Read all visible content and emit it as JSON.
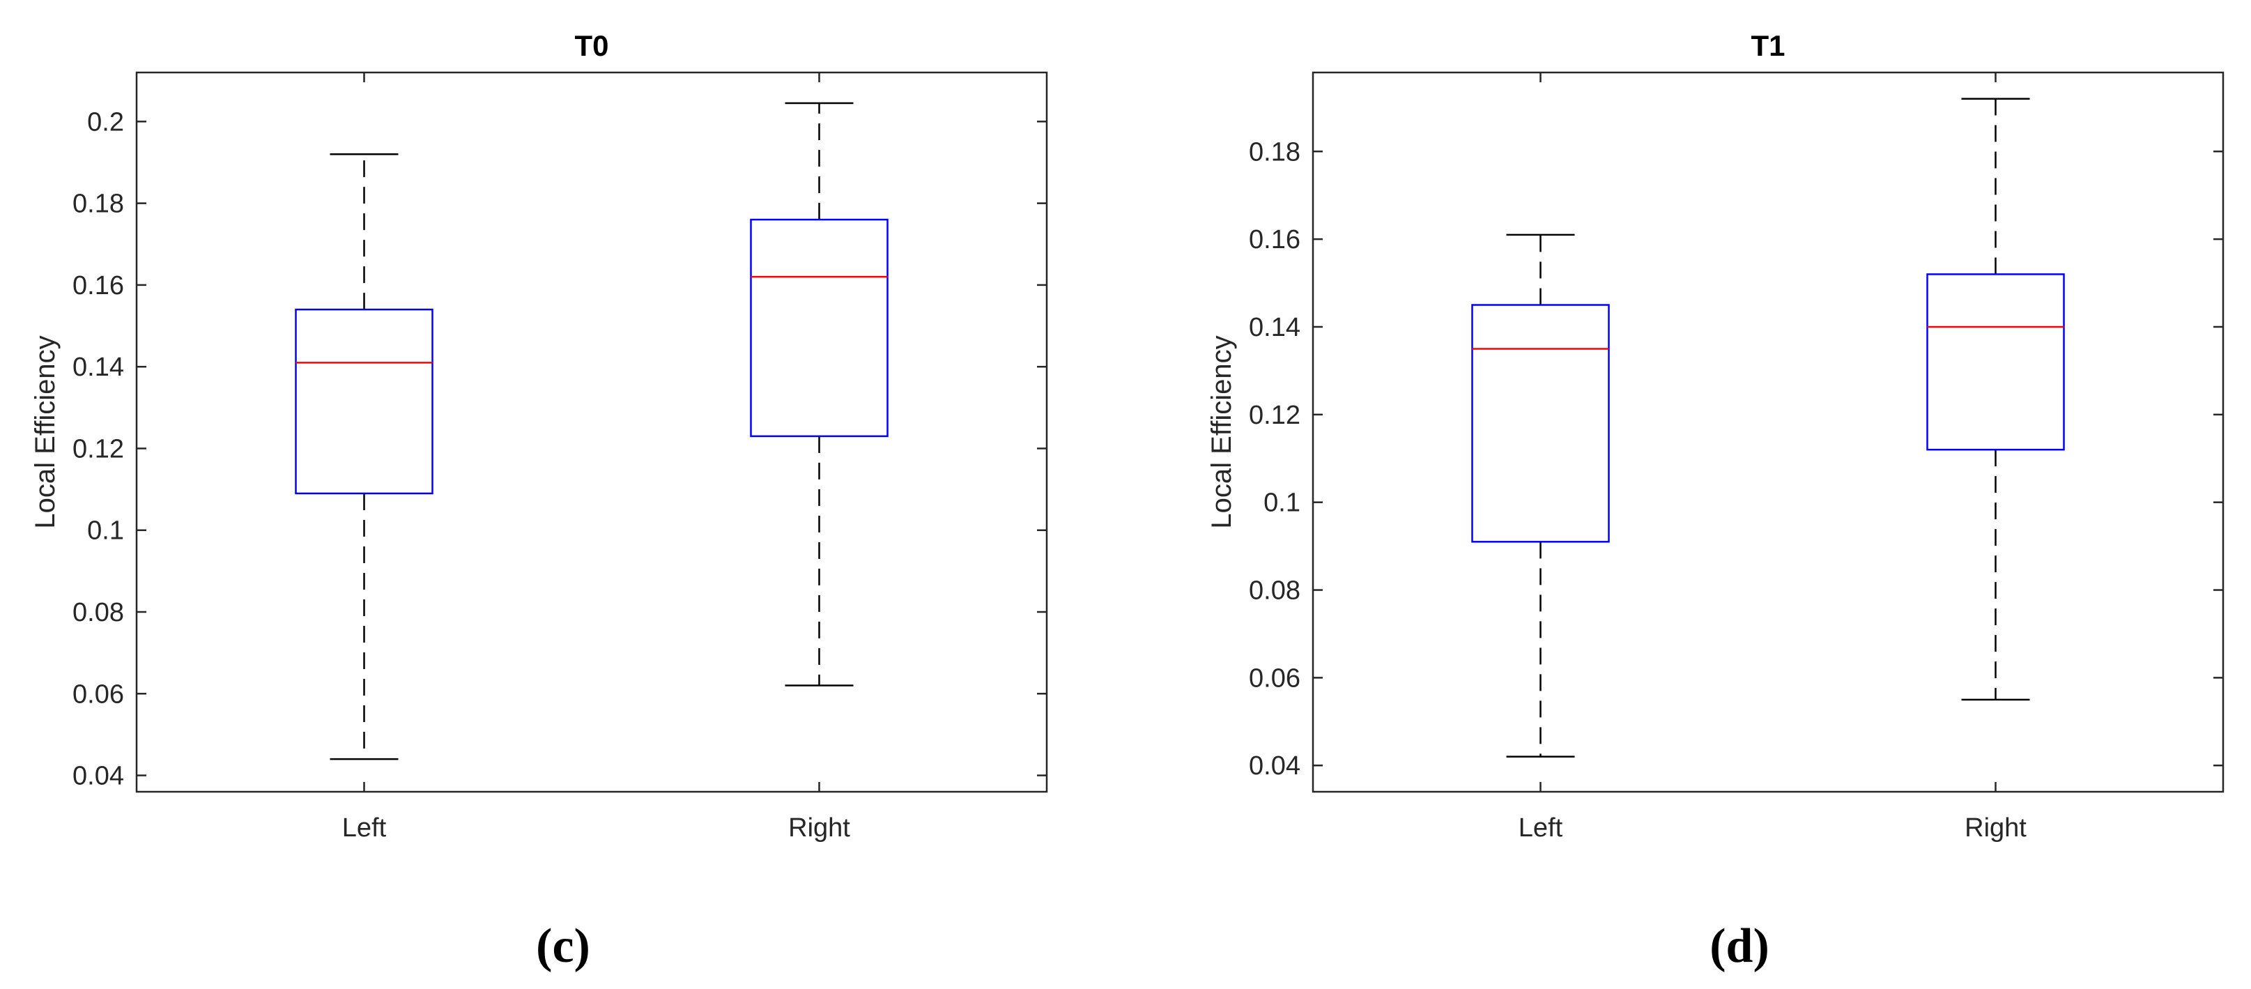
{
  "chart_data": [
    {
      "type": "box",
      "title": "T0",
      "panel_label": "(c)",
      "xlabel": "",
      "ylabel": "Local Efficiency",
      "categories": [
        "Left",
        "Right"
      ],
      "ylim": [
        0.036,
        0.212
      ],
      "yticks": [
        0.04,
        0.06,
        0.08,
        0.1,
        0.12,
        0.14,
        0.16,
        0.18,
        0.2
      ],
      "ytick_labels": [
        "0.04",
        "0.06",
        "0.08",
        "0.1",
        "0.12",
        "0.14",
        "0.16",
        "0.18",
        "0.2"
      ],
      "boxes": [
        {
          "category": "Left",
          "whisker_low": 0.044,
          "q1": 0.109,
          "median": 0.141,
          "q3": 0.154,
          "whisker_high": 0.192
        },
        {
          "category": "Right",
          "whisker_low": 0.062,
          "q1": 0.123,
          "median": 0.162,
          "q3": 0.176,
          "whisker_high": 0.2045
        }
      ],
      "colors": {
        "box": "#0000ff",
        "median": "#ff0000",
        "whisker": "#000000"
      }
    },
    {
      "type": "box",
      "title": "T1",
      "panel_label": "(d)",
      "xlabel": "",
      "ylabel": "Local Efficiency",
      "categories": [
        "Left",
        "Right"
      ],
      "ylim": [
        0.034,
        0.198
      ],
      "yticks": [
        0.04,
        0.06,
        0.08,
        0.1,
        0.12,
        0.14,
        0.16,
        0.18
      ],
      "ytick_labels": [
        "0.04",
        "0.06",
        "0.08",
        "0.1",
        "0.12",
        "0.14",
        "0.16",
        "0.18"
      ],
      "boxes": [
        {
          "category": "Left",
          "whisker_low": 0.042,
          "q1": 0.091,
          "median": 0.135,
          "q3": 0.145,
          "whisker_high": 0.161
        },
        {
          "category": "Right",
          "whisker_low": 0.055,
          "q1": 0.112,
          "median": 0.14,
          "q3": 0.152,
          "whisker_high": 0.192
        }
      ],
      "colors": {
        "box": "#0000ff",
        "median": "#ff0000",
        "whisker": "#000000"
      }
    }
  ]
}
